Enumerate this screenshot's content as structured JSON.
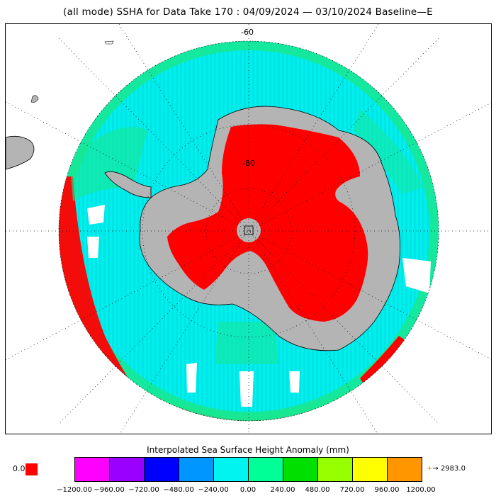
{
  "title": "(all mode) SSHA for Data Take 170 : 04/09/2024 — 03/10/2024 Baseline—E",
  "map": {
    "projection": "south-polar-stereographic",
    "lat_labels": [
      "-60",
      "-80"
    ],
    "colors": {
      "ocean_fill": "#00f5f0",
      "land": "#b4b4b4",
      "nodata": "#ff0000",
      "track_green": "#18e890",
      "outside": "#ffffff"
    }
  },
  "legend": {
    "title": "Interpolated Sea Surface Height Anomaly (mm)",
    "zero_label": "0.0",
    "zero_color": "#ff0000",
    "over_label": "→ 2983.0",
    "over_arrow_color": "#e09020",
    "swatches": [
      "#ff00ff",
      "#9a00ff",
      "#0000ff",
      "#0096ff",
      "#00f5f0",
      "#00ff96",
      "#00e000",
      "#96ff00",
      "#ffff00",
      "#ff9600"
    ],
    "ticks": [
      "−1200.00",
      "−960.00",
      "−720.00",
      "−480.00",
      "−240.00",
      "0.00",
      "240.00",
      "480.00",
      "720.00",
      "960.00",
      "1200.00"
    ]
  }
}
